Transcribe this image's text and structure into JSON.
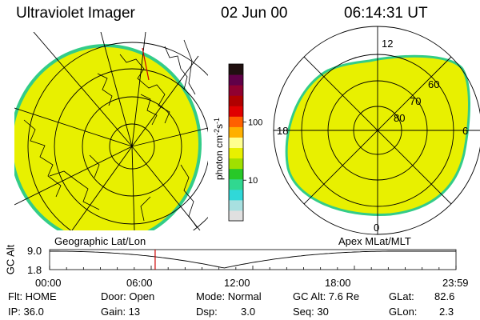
{
  "header": {
    "title": "Ultraviolet Imager",
    "date": "02 Jun 00",
    "time": "06:14:31 UT"
  },
  "colors": {
    "fill": "#e8f000",
    "edge": "#33cc88",
    "background": "#ffffff",
    "lines": "#000000",
    "marker": "#cc0000"
  },
  "colorbar": {
    "label_parts": [
      "photon cm",
      "-2",
      "s",
      "-1"
    ],
    "ticks": [
      "100",
      "10"
    ],
    "tick_values": [
      100,
      10
    ],
    "range": [
      2,
      1000
    ],
    "scale": "log",
    "colors": [
      "#e0e0e0",
      "#a8e0e0",
      "#30d8d8",
      "#30d890",
      "#28c828",
      "#a0e000",
      "#e8f000",
      "#ffff90",
      "#ffb000",
      "#ff6000",
      "#e00000",
      "#b00000",
      "#900030",
      "#600048",
      "#201010"
    ]
  },
  "left_map": {
    "label": "Geographic Lat/Lon"
  },
  "right_map": {
    "label": "Apex MLat/MLT",
    "mlt_labels": [
      "12",
      "18",
      "6",
      "0"
    ],
    "lat_labels": [
      "60",
      "70",
      "80"
    ]
  },
  "timeline": {
    "axis_label": "GC Alt",
    "y_ticks": [
      "9.0",
      "1.8"
    ],
    "ylim": [
      1.8,
      9.0
    ],
    "x_ticks": [
      "00:00",
      "06:00",
      "12:00",
      "18:00",
      "23:59"
    ],
    "marker_time": "06:14"
  },
  "info": {
    "row1": [
      "Flt: HOME",
      "Door: Open",
      "Mode: Normal",
      "GC Alt: 7.6 Re",
      "GLat:",
      "82.6"
    ],
    "row2": [
      "IP: 36.0",
      "Gain: 13",
      "Dsp:",
      "3.0",
      "Seq: 30",
      "GLon:",
      "2.3"
    ]
  }
}
